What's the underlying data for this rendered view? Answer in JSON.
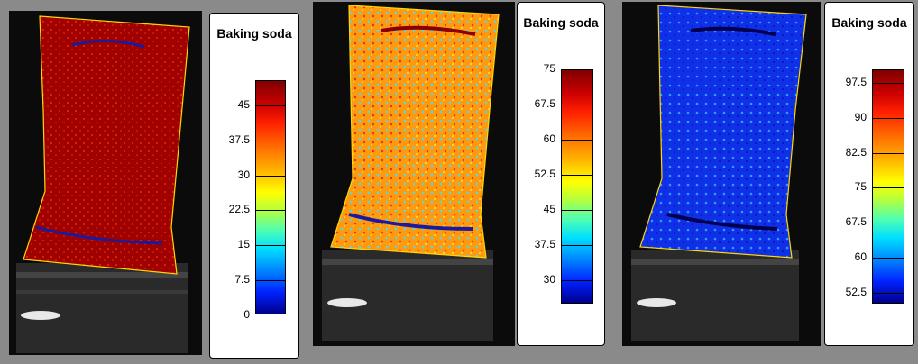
{
  "panels": [
    {
      "legend_title": "Baking soda",
      "scale_labels": [
        "45",
        "37.5",
        "30",
        "22.5",
        "15",
        "7.5",
        "0"
      ],
      "dominant_color": "#a30000"
    },
    {
      "legend_title": "Baking soda",
      "scale_labels": [
        "75",
        "67.5",
        "60",
        "52.5",
        "45",
        "37.5",
        "30"
      ],
      "dominant_color": "#ff8a00"
    },
    {
      "legend_title": "Baking soda",
      "scale_labels": [
        "97.5",
        "90",
        "82.5",
        "75",
        "67.5",
        "60",
        "52.5"
      ],
      "dominant_color": "#1030ff"
    }
  ]
}
